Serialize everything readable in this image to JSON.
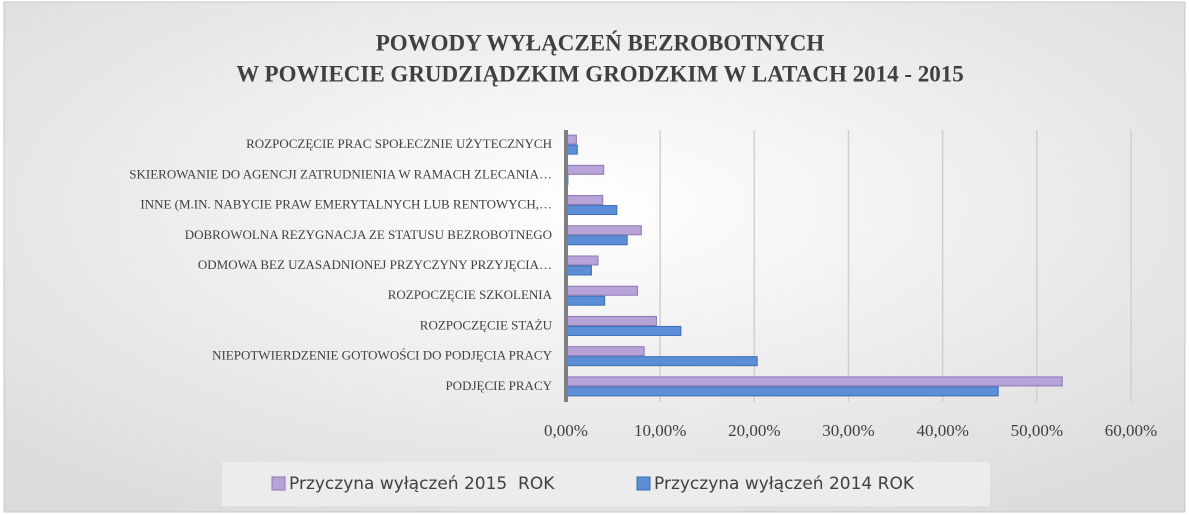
{
  "chart_data": {
    "type": "hbar",
    "title": [
      "POWODY WYŁĄCZEŃ BEZROBOTNYCH",
      "W POWIECIE GRUDZIĄDZKIM GRODZKIM W LATACH 2014 - 2015"
    ],
    "categories": [
      "PODJĘCIE PRACY",
      "NIEPOTWIERDZENIE GOTOWOŚCI DO PODJĘCIA PRACY",
      "ROZPOCZĘCIE STAŻU",
      "ROZPOCZĘCIE SZKOLENIA",
      "ODMOWA BEZ UZASADNIONEJ PRZYCZYNY PRZYJĘCIA…",
      "DOBROWOLNA REZYGNACJA ZE STATUSU BEZROBOTNEGO",
      "INNE (M.IN. NABYCIE PRAW EMERYTALNYCH LUB RENTOWYCH,…",
      "SKIEROWANIE DO AGENCJI ZATRUDNIENIA W RAMACH ZLECANIA…",
      "ROZPOCZĘCIE PRAC SPOŁECZNIE UŻYTECZNYCH"
    ],
    "series": [
      {
        "name": "Przyczyna wyłączeń 2015  ROK",
        "color": "#b7a3d8",
        "values": [
          52.7,
          8.3,
          9.6,
          7.6,
          3.4,
          8.0,
          3.9,
          4.0,
          1.1
        ]
      },
      {
        "name": "Przyczyna wyłączeń 2014 ROK",
        "color": "#5b8ed6",
        "values": [
          45.9,
          20.3,
          12.2,
          4.1,
          2.7,
          6.5,
          5.4,
          0.2,
          1.2
        ]
      }
    ],
    "xlim": [
      0,
      60
    ],
    "xticks": [
      {
        "value": 0,
        "label": "0,00%"
      },
      {
        "value": 10,
        "label": "10,00%"
      },
      {
        "value": 20,
        "label": "20,00%"
      },
      {
        "value": 30,
        "label": "30,00%"
      },
      {
        "value": 40,
        "label": "40,00%"
      },
      {
        "value": 50,
        "label": "50,00%"
      },
      {
        "value": 60,
        "label": "60,00%"
      }
    ],
    "grid": true,
    "legend": "bottom"
  }
}
